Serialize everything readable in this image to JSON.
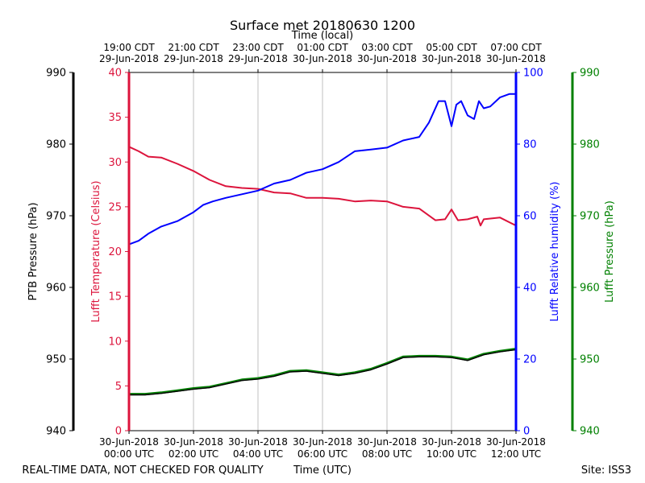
{
  "chart_data": {
    "type": "line",
    "title": "Surface met 20180630 1200",
    "xlabel": "Time (UTC)",
    "top_xlabel": "Time (local)",
    "footer_left": "REAL-TIME DATA, NOT CHECKED FOR QUALITY",
    "footer_right": "Site: ISS3",
    "x_range_hours": [
      0,
      12
    ],
    "grid": "vertical",
    "bottom_ticks": [
      {
        "hour": 0,
        "line1": "30-Jun-2018",
        "line2": "00:00 UTC"
      },
      {
        "hour": 2,
        "line1": "30-Jun-2018",
        "line2": "02:00 UTC"
      },
      {
        "hour": 4,
        "line1": "30-Jun-2018",
        "line2": "04:00 UTC"
      },
      {
        "hour": 6,
        "line1": "30-Jun-2018",
        "line2": "06:00 UTC"
      },
      {
        "hour": 8,
        "line1": "30-Jun-2018",
        "line2": "08:00 UTC"
      },
      {
        "hour": 10,
        "line1": "30-Jun-2018",
        "line2": "10:00 UTC"
      },
      {
        "hour": 12,
        "line1": "30-Jun-2018",
        "line2": "12:00 UTC"
      }
    ],
    "top_ticks": [
      {
        "hour": 0,
        "line1": "19:00 CDT",
        "line2": "29-Jun-2018"
      },
      {
        "hour": 2,
        "line1": "21:00 CDT",
        "line2": "29-Jun-2018"
      },
      {
        "hour": 4,
        "line1": "23:00 CDT",
        "line2": "29-Jun-2018"
      },
      {
        "hour": 6,
        "line1": "01:00 CDT",
        "line2": "30-Jun-2018"
      },
      {
        "hour": 8,
        "line1": "03:00 CDT",
        "line2": "30-Jun-2018"
      },
      {
        "hour": 10,
        "line1": "05:00 CDT",
        "line2": "30-Jun-2018"
      },
      {
        "hour": 12,
        "line1": "07:00 CDT",
        "line2": "30-Jun-2018"
      }
    ],
    "axes": [
      {
        "id": "ptb_pressure",
        "label": "PTB Pressure (hPa)",
        "color": "#000000",
        "range": [
          940,
          990
        ],
        "ticks": [
          940,
          950,
          960,
          970,
          980,
          990
        ]
      },
      {
        "id": "lufft_temperature",
        "label": "Lufft Temperature (Celsius)",
        "color": "#dc143c",
        "range": [
          0,
          40
        ],
        "ticks": [
          0,
          5,
          10,
          15,
          20,
          25,
          30,
          35,
          40
        ]
      },
      {
        "id": "lufft_rh",
        "label": "Lufft Relative humidity (%)",
        "color": "#0000ff",
        "range": [
          0,
          100
        ],
        "ticks": [
          0,
          20,
          40,
          60,
          80,
          100
        ]
      },
      {
        "id": "lufft_pressure",
        "label": "Lufft Pressure (hPa)",
        "color": "#008000",
        "range": [
          940,
          990
        ],
        "ticks": [
          940,
          950,
          960,
          970,
          980,
          990
        ]
      }
    ],
    "series": [
      {
        "name": "Lufft Temperature",
        "axis": "lufft_temperature",
        "color": "#dc143c",
        "x": [
          0,
          0.3,
          0.6,
          1.0,
          1.5,
          2.0,
          2.5,
          3.0,
          3.5,
          4.0,
          4.5,
          5.0,
          5.5,
          6.0,
          6.5,
          7.0,
          7.5,
          8.0,
          8.5,
          9.0,
          9.5,
          9.8,
          10.0,
          10.2,
          10.5,
          10.8,
          10.9,
          11.0,
          11.5,
          12.0
        ],
        "values": [
          31.7,
          31.2,
          30.6,
          30.5,
          29.8,
          29.0,
          28.0,
          27.3,
          27.1,
          27.0,
          26.6,
          26.5,
          26.0,
          26.0,
          25.9,
          25.6,
          25.7,
          25.6,
          25.0,
          24.8,
          23.5,
          23.6,
          24.7,
          23.5,
          23.6,
          23.9,
          22.9,
          23.6,
          23.8,
          22.9
        ]
      },
      {
        "name": "Lufft Relative humidity",
        "axis": "lufft_rh",
        "color": "#0000ff",
        "x": [
          0,
          0.3,
          0.6,
          1.0,
          1.5,
          2.0,
          2.3,
          2.6,
          3.0,
          3.5,
          4.0,
          4.5,
          5.0,
          5.5,
          6.0,
          6.5,
          7.0,
          7.5,
          8.0,
          8.5,
          9.0,
          9.3,
          9.6,
          9.8,
          10.0,
          10.15,
          10.3,
          10.5,
          10.7,
          10.85,
          11.0,
          11.2,
          11.5,
          11.8,
          12.0
        ],
        "values": [
          52.0,
          53.0,
          55.0,
          57.0,
          58.5,
          61.0,
          63.0,
          64.0,
          65.0,
          66.0,
          67.0,
          69.0,
          70.0,
          72.0,
          73.0,
          75.0,
          78.0,
          78.5,
          79.0,
          81.0,
          82.0,
          86.0,
          92.0,
          92.0,
          85.0,
          91.0,
          92.0,
          88.0,
          87.0,
          92.0,
          90.0,
          90.5,
          93.0,
          94.0,
          94.0
        ]
      },
      {
        "name": "PTB Pressure",
        "axis": "ptb_pressure",
        "color": "#000000",
        "x": [
          0,
          0.5,
          1.0,
          1.5,
          2.0,
          2.5,
          3.0,
          3.5,
          4.0,
          4.5,
          5.0,
          5.5,
          6.0,
          6.5,
          7.0,
          7.5,
          8.0,
          8.5,
          9.0,
          9.5,
          10.0,
          10.5,
          11.0,
          11.5,
          12.0
        ],
        "values": [
          945.0,
          945.0,
          945.2,
          945.5,
          945.8,
          946.0,
          946.5,
          947.0,
          947.2,
          947.6,
          948.2,
          948.3,
          948.0,
          947.7,
          948.0,
          948.5,
          949.3,
          950.2,
          950.3,
          950.3,
          950.2,
          949.8,
          950.6,
          951.0,
          951.3
        ]
      },
      {
        "name": "Lufft Pressure",
        "axis": "lufft_pressure",
        "color": "#008000",
        "x": [
          0,
          0.5,
          1.0,
          1.5,
          2.0,
          2.5,
          3.0,
          3.5,
          4.0,
          4.5,
          5.0,
          5.5,
          6.0,
          6.5,
          7.0,
          7.5,
          8.0,
          8.5,
          9.0,
          9.5,
          10.0,
          10.5,
          11.0,
          11.5,
          12.0
        ],
        "values": [
          945.1,
          945.1,
          945.3,
          945.6,
          945.9,
          946.1,
          946.6,
          947.1,
          947.3,
          947.7,
          948.3,
          948.4,
          948.1,
          947.8,
          948.1,
          948.6,
          949.4,
          950.3,
          950.4,
          950.4,
          950.3,
          949.9,
          950.7,
          951.1,
          951.4
        ]
      }
    ]
  }
}
